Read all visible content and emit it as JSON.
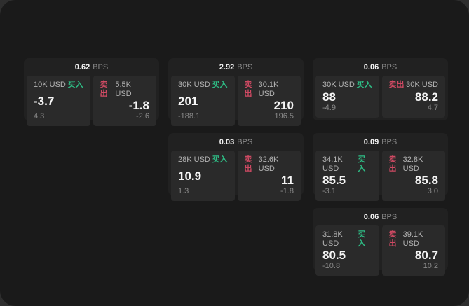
{
  "page": {
    "bps_suffix": "BPS",
    "buy_label": "买入",
    "sell_label": "卖出"
  },
  "colors": {
    "buy": "#2ebd85",
    "sell": "#cf4a63",
    "surface_bg": "#1a1a1a",
    "card_bg": "#212121",
    "panel_bg": "#2a2a2a"
  },
  "cards": [
    {
      "bps": "0.62",
      "row": 1,
      "col": 1,
      "buy": {
        "amount": "10K USD",
        "price": "-3.7",
        "delta": "4.3"
      },
      "sell": {
        "amount": "5.5K USD",
        "price": "-1.8",
        "delta": "-2.6"
      }
    },
    {
      "bps": "2.92",
      "row": 1,
      "col": 2,
      "buy": {
        "amount": "30K USD",
        "price": "201",
        "delta": "-188.1"
      },
      "sell": {
        "amount": "30.1K USD",
        "price": "210",
        "delta": "196.5"
      }
    },
    {
      "bps": "0.06",
      "row": 1,
      "col": 3,
      "buy": {
        "amount": "30K USD",
        "price": "88",
        "delta": "-4.9"
      },
      "sell": {
        "amount": "30K USD",
        "price": "88.2",
        "delta": "4.7"
      }
    },
    {
      "bps": "0.03",
      "row": 2,
      "col": 2,
      "buy": {
        "amount": "28K USD",
        "price": "10.9",
        "delta": "1.3"
      },
      "sell": {
        "amount": "32.6K USD",
        "price": "11",
        "delta": "-1.8"
      }
    },
    {
      "bps": "0.09",
      "row": 2,
      "col": 3,
      "buy": {
        "amount": "34.1K USD",
        "price": "85.5",
        "delta": "-3.1"
      },
      "sell": {
        "amount": "32.8K USD",
        "price": "85.8",
        "delta": "3.0"
      }
    },
    {
      "bps": "0.06",
      "row": 3,
      "col": 3,
      "buy": {
        "amount": "31.8K USD",
        "price": "80.5",
        "delta": "-10.8"
      },
      "sell": {
        "amount": "39.1K USD",
        "price": "80.7",
        "delta": "10.2"
      }
    }
  ]
}
